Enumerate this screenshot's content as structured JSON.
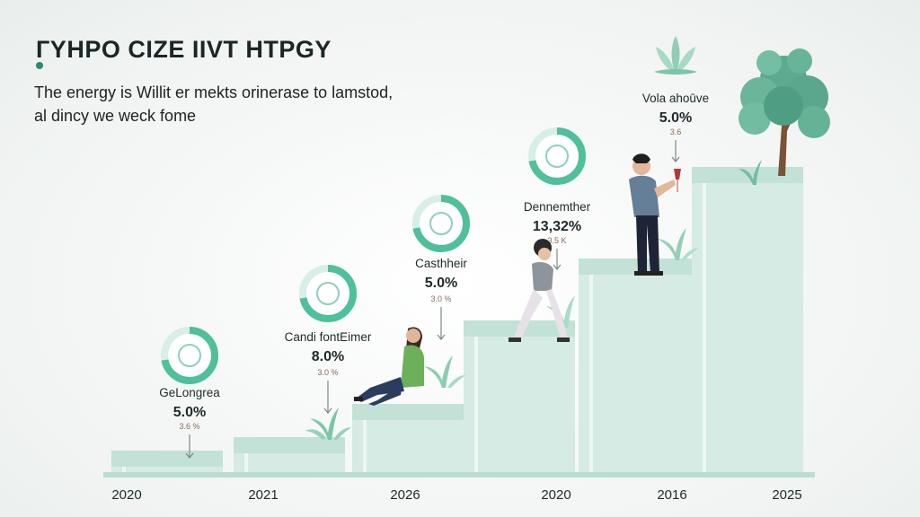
{
  "header": {
    "title": "ГYНPO CIZE IIVT HTPGY",
    "subtitle_line1": "The energy is Willit er mekts orinerase to lamstod,",
    "subtitle_line2": "al dincy we weck fome"
  },
  "colors": {
    "step_fill": "#d5ebe4",
    "step_top": "#c2e1d7",
    "ring": "#4fbf9c",
    "ring_light": "#d7efe6",
    "baseline": "#b9ddd1",
    "text_dark": "#1e2a2a",
    "tree_leaf": "#5daa90",
    "trunk": "#7a5236"
  },
  "icons": [
    "gauge-ring-icon",
    "hand-ring-icon",
    "swirl-ring-icon",
    "device-ring-icon",
    "lotus-icon",
    "tree-icon",
    "plant-icon",
    "person-icon"
  ],
  "chart_data": {
    "type": "bar",
    "categories": [
      "2020",
      "2021",
      "2026",
      "2020",
      "2016",
      "2025"
    ],
    "annotations": [
      {
        "label": "GeLongrea",
        "value": "5.0%",
        "small": "3.6 %"
      },
      {
        "label": "Candi fontEimer",
        "value": "8.0%",
        "small": "3.0 %"
      },
      {
        "label": "Casthheir",
        "value": "5.0%",
        "small": "3.0 %"
      },
      {
        "label": "Dennemther",
        "value": "13,32%",
        "small": "3.5 K"
      },
      {
        "label": "Vola ahoūve",
        "value": "5.0%",
        "small": "3.6"
      }
    ],
    "xlabel": "",
    "ylabel": "",
    "grid": false,
    "legend": "none"
  }
}
